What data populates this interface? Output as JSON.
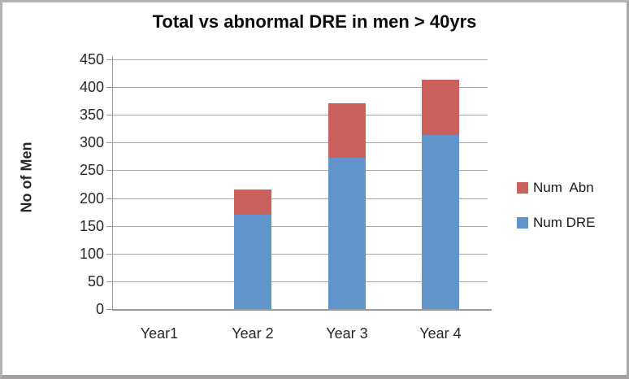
{
  "chart_data": {
    "type": "bar",
    "stacked": true,
    "title": "Total vs abnormal DRE in men > 40yrs",
    "xlabel": "",
    "ylabel": "No of Men",
    "categories": [
      "Year1",
      "Year 2",
      "Year 3",
      "Year 4"
    ],
    "series": [
      {
        "name": "Num DRE",
        "color": "#6094ca",
        "values": [
          0,
          170,
          273,
          313
        ]
      },
      {
        "name": "Num  Abn",
        "color": "#cb615c",
        "values": [
          0,
          45,
          98,
          100
        ]
      }
    ],
    "totals": [
      0,
      215,
      371,
      413
    ],
    "ylim": [
      0,
      450
    ],
    "ytick_step": 50,
    "grid": true,
    "legend_position": "right",
    "legend_order_top_to_bottom": [
      "Num  Abn",
      "Num DRE"
    ],
    "colors": {
      "bar_blue": "#6094ca",
      "bar_red": "#cb615c",
      "gridline": "#a6a6a6",
      "axis_line": "#999999",
      "text": "#262626",
      "frame_border": "#b5b2b2"
    }
  }
}
